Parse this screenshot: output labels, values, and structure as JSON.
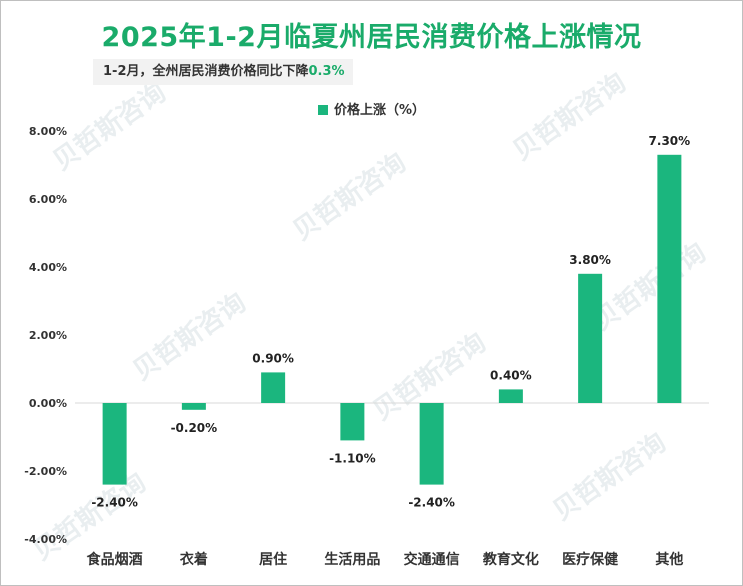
{
  "title": "2025年1-2月临夏州居民消费价格上涨情况",
  "subtitle": {
    "prefix": "1-2月，全州居民消费价格同比下降",
    "value": "0.3%"
  },
  "watermark": "贝哲斯咨询",
  "colors": {
    "bar": "#1bb67e",
    "title": "#1aab6a",
    "axis": "#d9d9d9"
  },
  "chart_data": {
    "type": "bar",
    "categories": [
      "食品烟酒",
      "衣着",
      "居住",
      "生活用品",
      "交通通信",
      "教育文化",
      "医疗保健",
      "其他"
    ],
    "series": [
      {
        "name": "价格上涨（%）",
        "values": [
          -2.4,
          -0.2,
          0.9,
          -1.1,
          -2.4,
          0.4,
          3.8,
          7.3
        ]
      }
    ],
    "data_labels": [
      "-2.40%",
      "-0.20%",
      "0.90%",
      "-1.10%",
      "-2.40%",
      "0.40%",
      "3.80%",
      "7.30%"
    ],
    "y_ticks": [
      "8.00%",
      "6.00%",
      "4.00%",
      "2.00%",
      "0.00%",
      "-2.00%",
      "-4.00%"
    ],
    "ylim": [
      -4,
      8
    ],
    "grid": false,
    "legend_position": "top-center"
  }
}
